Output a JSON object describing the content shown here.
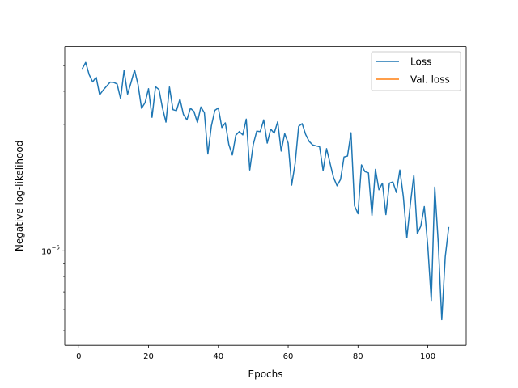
{
  "chart_data": {
    "type": "line",
    "xlabel": "Epochs",
    "ylabel": "Negative log-likelihood",
    "xlim": [
      -4,
      111
    ],
    "ylim": [
      4.4e-06,
      5.9e-05
    ],
    "yscale": "log",
    "x_ticks": [
      0,
      20,
      40,
      60,
      80,
      100
    ],
    "y_tick_label": {
      "base": "10",
      "exponent": "−5",
      "value": 1e-05
    },
    "grid": false,
    "legend": {
      "position": "upper-right",
      "entries": [
        "Loss",
        "Val. loss"
      ]
    },
    "colors": {
      "Loss": "#1f77b4",
      "Val. loss": "#ff7f0e"
    },
    "series": [
      {
        "name": "Loss",
        "x": [
          1,
          2,
          3,
          4,
          5,
          6,
          7,
          8,
          9,
          10,
          11,
          12,
          13,
          14,
          15,
          16,
          17,
          18,
          19,
          20,
          21,
          22,
          23,
          24,
          25,
          26,
          27,
          28,
          29,
          30,
          31,
          32,
          33,
          34,
          35,
          36,
          37,
          38,
          39,
          40,
          41,
          42,
          43,
          44,
          45,
          46,
          47,
          48,
          49,
          50,
          51,
          52,
          53,
          54,
          55,
          56,
          57,
          58,
          59,
          60,
          61,
          62,
          63,
          64,
          65,
          66,
          67,
          68,
          69,
          70,
          71,
          72,
          73,
          74,
          75,
          76,
          77,
          78,
          79,
          80,
          81,
          82,
          83,
          84,
          85,
          86,
          87,
          88,
          89,
          90,
          91,
          92,
          93,
          94,
          95,
          96,
          97,
          98,
          99,
          100,
          101,
          102,
          103,
          104,
          105,
          106
        ],
        "values": [
          4.86e-05,
          5.14e-05,
          4.62e-05,
          4.34e-05,
          4.52e-05,
          3.88e-05,
          4.04e-05,
          4.18e-05,
          4.33e-05,
          4.32e-05,
          4.26e-05,
          3.75e-05,
          4.8e-05,
          3.9e-05,
          4.32e-05,
          4.81e-05,
          4.24e-05,
          3.45e-05,
          3.62e-05,
          4.09e-05,
          3.19e-05,
          4.16e-05,
          4.06e-05,
          3.46e-05,
          3.06e-05,
          4.15e-05,
          3.41e-05,
          3.38e-05,
          3.74e-05,
          3.27e-05,
          3.12e-05,
          3.45e-05,
          3.36e-05,
          3.05e-05,
          3.49e-05,
          3.32e-05,
          2.32e-05,
          2.96e-05,
          3.39e-05,
          3.46e-05,
          2.92e-05,
          3.04e-05,
          2.52e-05,
          2.3e-05,
          2.73e-05,
          2.82e-05,
          2.74e-05,
          3.14e-05,
          2.02e-05,
          2.52e-05,
          2.83e-05,
          2.82e-05,
          3.12e-05,
          2.55e-05,
          2.88e-05,
          2.78e-05,
          3.07e-05,
          2.38e-05,
          2.77e-05,
          2.55e-05,
          1.77e-05,
          2.14e-05,
          2.95e-05,
          3.02e-05,
          2.75e-05,
          2.59e-05,
          2.51e-05,
          2.49e-05,
          2.47e-05,
          2.01e-05,
          2.43e-05,
          2.14e-05,
          1.89e-05,
          1.76e-05,
          1.86e-05,
          2.26e-05,
          2.28e-05,
          2.79e-05,
          1.48e-05,
          1.38e-05,
          2.11e-05,
          1.99e-05,
          1.97e-05,
          1.36e-05,
          2.03e-05,
          1.7e-05,
          1.8e-05,
          1.37e-05,
          1.8e-05,
          1.82e-05,
          1.66e-05,
          2.02e-05,
          1.6e-05,
          1.12e-05,
          1.5e-05,
          1.93e-05,
          1.16e-05,
          1.24e-05,
          1.47e-05,
          1.04e-05,
          6.5e-06,
          1.74e-05,
          1.07e-05,
          5.5e-06,
          9.5e-06,
          1.23e-05
        ]
      },
      {
        "name": "Val. loss",
        "x": [],
        "values": []
      }
    ]
  }
}
